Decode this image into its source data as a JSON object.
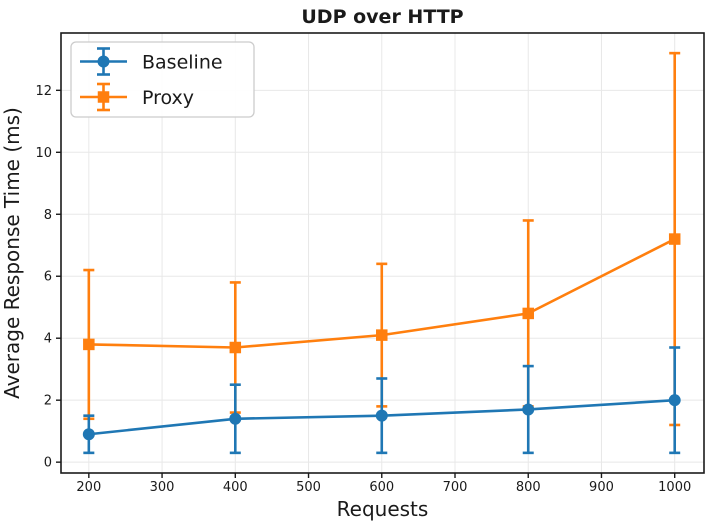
{
  "figure": {
    "title": "UDP over HTTP"
  },
  "chart_data": {
    "type": "line",
    "title": "UDP over HTTP",
    "xlabel": "Requests",
    "ylabel": "Average Response Time (ms)",
    "x": [
      200,
      400,
      600,
      800,
      1000
    ],
    "series": [
      {
        "name": "Baseline",
        "color": "#1f77b4",
        "marker": "circle",
        "values": [
          0.9,
          1.4,
          1.5,
          1.7,
          2.0
        ],
        "yerr": [
          0.6,
          1.1,
          1.2,
          1.4,
          1.7
        ]
      },
      {
        "name": "Proxy",
        "color": "#ff7f0e",
        "marker": "square",
        "values": [
          3.8,
          3.7,
          4.1,
          4.8,
          7.2
        ],
        "yerr": [
          2.4,
          2.1,
          2.3,
          3.0,
          6.0
        ]
      }
    ],
    "xticks": [
      200,
      300,
      400,
      500,
      600,
      700,
      800,
      900,
      1000
    ],
    "yticks": [
      0,
      2,
      4,
      6,
      8,
      10,
      12
    ],
    "xlim": [
      162,
      1040
    ],
    "ylim": [
      -0.35,
      13.85
    ],
    "grid": true,
    "legend_position": "upper left",
    "legend_entries": [
      "Baseline",
      "Proxy"
    ]
  },
  "style": {
    "axis_color": "#1a1a1a",
    "grid_color": "#e8e8e8",
    "legend_border_color": "#cccccc",
    "background": "#ffffff"
  }
}
